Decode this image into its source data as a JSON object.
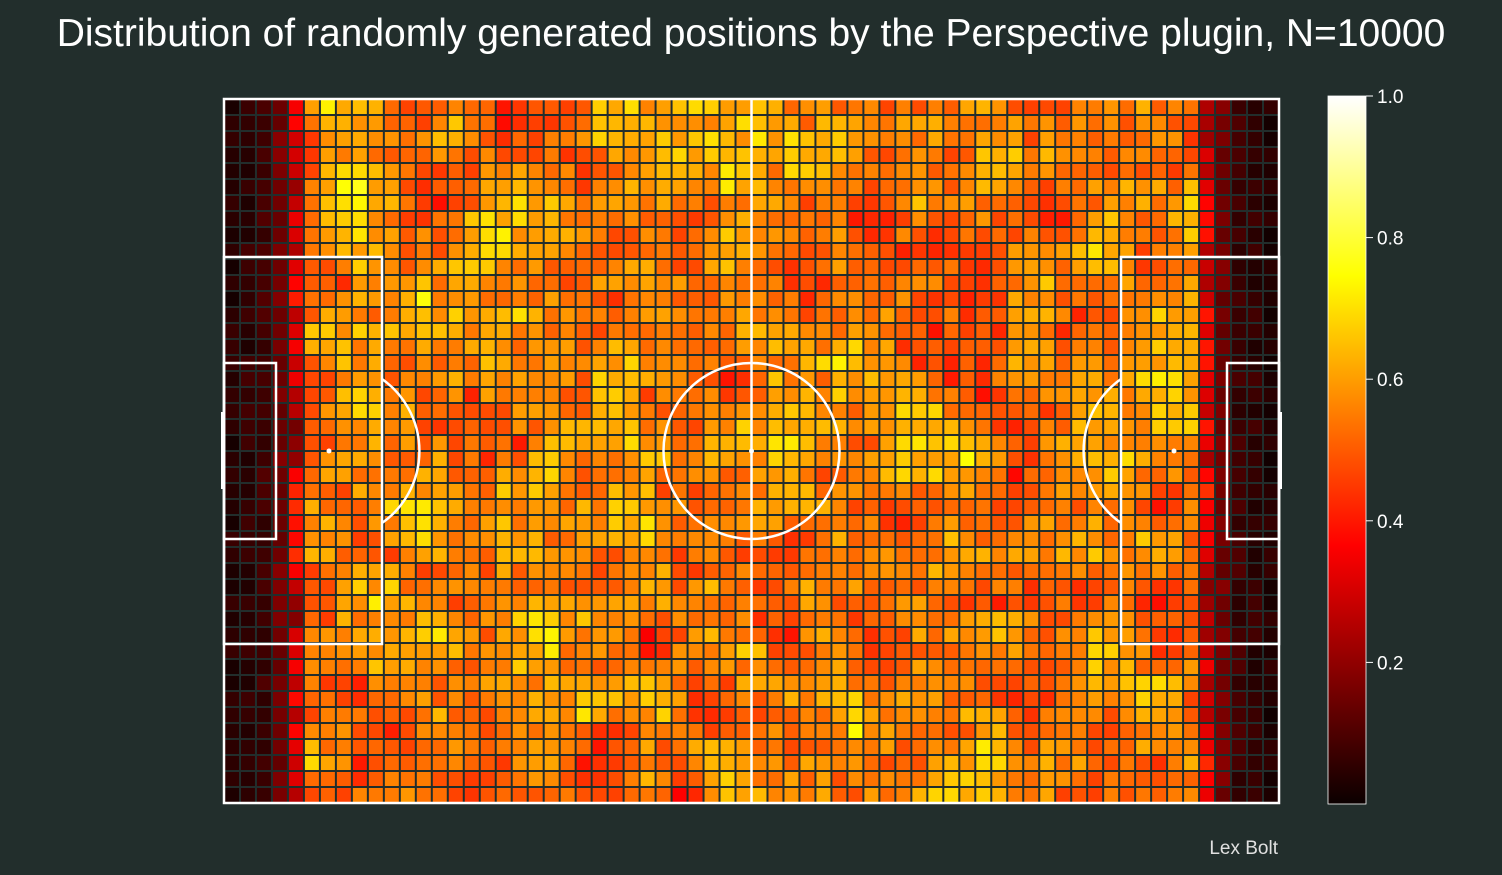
{
  "title": "Distribution of randomly generated positions by the Perspective plugin, N=10000",
  "credit": "Lex Bolt",
  "colors": {
    "background": "#222e2c",
    "lines": "#ffffff",
    "colormap": "hot"
  },
  "chart_data": {
    "type": "heatmap",
    "title": "Distribution of randomly generated positions by the Perspective plugin, N=10000",
    "xlabel": "",
    "ylabel": "",
    "grid": {
      "columns": 66,
      "rows": 44
    },
    "value_range": [
      0,
      1
    ],
    "colorbar": {
      "ticks": [
        0.2,
        0.4,
        0.6,
        0.8,
        1.0
      ],
      "tick_labels": [
        "0.2",
        "0.4",
        "0.6",
        "0.8",
        "1.0"
      ]
    },
    "pitch_markings": [
      "halfway-line",
      "centre-circle",
      "penalty-areas",
      "goal-areas",
      "penalty-arcs",
      "goals"
    ],
    "notes": "Approximate normalized density: darker (≈0–0.2) near the goal lines, roughly 0.4–0.8 across the rest of the pitch."
  }
}
